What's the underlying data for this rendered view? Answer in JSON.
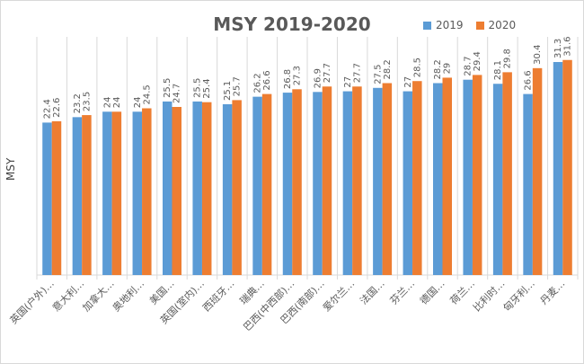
{
  "chart_data": {
    "type": "bar",
    "title": "MSY 2019-2020",
    "ylabel": "MSY",
    "xlabel": "",
    "ylim": [
      0,
      35
    ],
    "grid": false,
    "legend_position": "top-right",
    "categories": [
      "英国(户外)…",
      "意大利…",
      "加拿大…",
      "奥地利…",
      "美国…",
      "英国(室内)…",
      "西班牙…",
      "瑞典…",
      "巴西(中西部)…",
      "巴西(南部)…",
      "爱尔兰…",
      "法国…",
      "芬兰…",
      "德国…",
      "荷兰…",
      "比利时…",
      "匈牙利…",
      "丹麦…"
    ],
    "series": [
      {
        "name": "2019",
        "color": "#5b9bd5",
        "values": [
          22.4,
          23.2,
          24,
          24,
          25.5,
          25.5,
          25.1,
          26.2,
          26.8,
          26.9,
          27,
          27.5,
          27,
          28.2,
          28.7,
          28.1,
          26.6,
          31.3
        ]
      },
      {
        "name": "2020",
        "color": "#ed7d31",
        "values": [
          22.6,
          23.5,
          24,
          24.5,
          24.7,
          25.4,
          25.7,
          26.6,
          27.3,
          27.7,
          27.7,
          28.2,
          28.5,
          29,
          29.4,
          29.8,
          30.4,
          31.6
        ]
      }
    ]
  }
}
